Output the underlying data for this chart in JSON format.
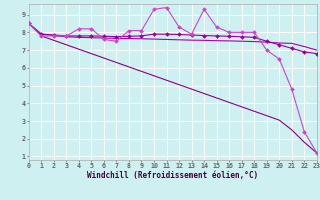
{
  "xlabel": "Windchill (Refroidissement éolien,°C)",
  "bg_color": "#cef0f0",
  "grid_color": "#ffffff",
  "line_color1": "#cc44cc",
  "line_color2": "#990099",
  "line_color3": "#aa00aa",
  "line_color4": "#880088",
  "x_values": [
    0,
    1,
    2,
    3,
    4,
    5,
    6,
    7,
    8,
    9,
    10,
    11,
    12,
    13,
    14,
    15,
    16,
    17,
    18,
    19,
    20,
    21,
    22,
    23
  ],
  "series1": [
    8.5,
    7.8,
    7.8,
    7.8,
    8.2,
    8.2,
    7.6,
    7.5,
    8.1,
    8.1,
    9.3,
    9.4,
    8.3,
    7.9,
    9.3,
    8.3,
    8.0,
    8.0,
    8.0,
    7.0,
    6.5,
    4.8,
    2.4,
    1.2
  ],
  "series2": [
    8.5,
    7.9,
    7.85,
    7.8,
    7.8,
    7.8,
    7.78,
    7.76,
    7.78,
    7.8,
    7.9,
    7.9,
    7.88,
    7.85,
    7.82,
    7.8,
    7.78,
    7.75,
    7.72,
    7.5,
    7.3,
    7.1,
    6.9,
    6.8
  ],
  "series3": [
    8.5,
    7.9,
    7.82,
    7.75,
    7.72,
    7.7,
    7.68,
    7.66,
    7.65,
    7.64,
    7.62,
    7.6,
    7.58,
    7.56,
    7.55,
    7.53,
    7.52,
    7.5,
    7.48,
    7.45,
    7.4,
    7.38,
    7.2,
    7.0
  ],
  "series4": [
    8.5,
    7.8,
    7.55,
    7.3,
    7.05,
    6.8,
    6.55,
    6.3,
    6.05,
    5.8,
    5.55,
    5.3,
    5.05,
    4.8,
    4.55,
    4.3,
    4.05,
    3.8,
    3.55,
    3.3,
    3.05,
    2.5,
    1.8,
    1.2
  ],
  "xlim": [
    0,
    23
  ],
  "ylim": [
    0.8,
    9.6
  ],
  "xticks": [
    0,
    1,
    2,
    3,
    4,
    5,
    6,
    7,
    8,
    9,
    10,
    11,
    12,
    13,
    14,
    15,
    16,
    17,
    18,
    19,
    20,
    21,
    22,
    23
  ],
  "yticks": [
    1,
    2,
    3,
    4,
    5,
    6,
    7,
    8,
    9
  ],
  "markersize": 2.0,
  "linewidth": 0.8,
  "tick_fontsize": 4.8,
  "label_fontsize": 5.5
}
